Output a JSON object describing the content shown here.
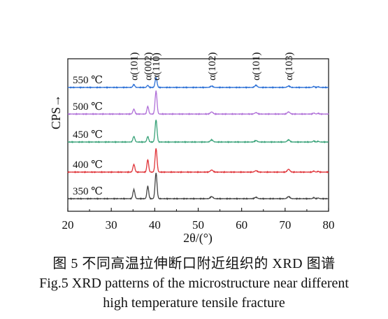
{
  "chart_data": {
    "type": "line",
    "xlabel": "2θ/(°)",
    "ylabel": "CPS→",
    "xlim": [
      20,
      80
    ],
    "x_ticks": [
      "20",
      "30",
      "40",
      "50",
      "60",
      "70",
      "80"
    ],
    "grid": false,
    "peaks": [
      {
        "label": "α(101)",
        "x": 35.2
      },
      {
        "label": "α(002)",
        "x": 38.4
      },
      {
        "label": "α(110)",
        "x": 40.3
      },
      {
        "label": "α(102)",
        "x": 53.1
      },
      {
        "label": "α(101)",
        "x": 63.3
      },
      {
        "label": "α(103)",
        "x": 70.8
      }
    ],
    "series": [
      {
        "name": "550 ℃",
        "color": "#2a6fd6",
        "heights": [
          4,
          3,
          14,
          2,
          3,
          2
        ]
      },
      {
        "name": "500 ℃",
        "color": "#b070d8",
        "heights": [
          7,
          11,
          33,
          3,
          2,
          3
        ]
      },
      {
        "name": "450 ℃",
        "color": "#3aa37a",
        "heights": [
          8,
          8,
          32,
          3,
          2,
          3
        ]
      },
      {
        "name": "400 ℃",
        "color": "#e0353a",
        "heights": [
          11,
          18,
          34,
          3,
          2,
          4
        ]
      },
      {
        "name": "350 ℃",
        "color": "#444444",
        "heights": [
          13,
          18,
          37,
          3,
          2,
          3
        ]
      }
    ]
  },
  "caption": {
    "cn": "图 5  不同高温拉伸断口附近组织的 XRD 图谱",
    "en_line1": "Fig.5  XRD patterns of the microstructure near different",
    "en_line2": "high temperature tensile fracture"
  }
}
